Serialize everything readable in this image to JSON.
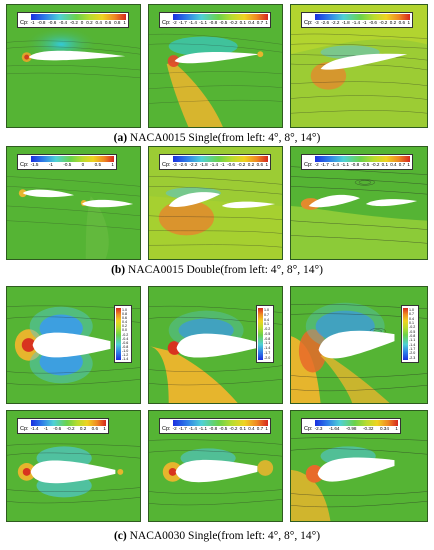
{
  "captions": [
    {
      "tag": "(a)",
      "text": "NACA0015 Single(from left: 4°, 8°, 14°)"
    },
    {
      "tag": "(b)",
      "text": "NACA0015 Double(from left: 4°, 8°, 14°)"
    },
    {
      "tag": "(c)",
      "text": "NACA0030 Single(from left: 4°, 8°, 14°)"
    }
  ],
  "colorbar_label": "Cp:",
  "colorbars": {
    "a1": [
      "-1",
      "-0.8",
      "-0.6",
      "-0.4",
      "-0.2",
      "0",
      "0.2",
      "0.4",
      "0.6",
      "0.8",
      "1"
    ],
    "a2": [
      "-2",
      "-1.7",
      "-1.4",
      "-1.1",
      "-0.8",
      "-0.5",
      "-0.2",
      "0.1",
      "0.4",
      "0.7",
      "1"
    ],
    "a3": [
      "-3",
      "-2.6",
      "-2.2",
      "-1.8",
      "-1.4",
      "-1",
      "-0.6",
      "-0.2",
      "0.2",
      "0.6",
      "1"
    ],
    "b1": [
      "-1.5",
      "-1",
      "-0.5",
      "0",
      "0.5",
      "1"
    ],
    "b2": [
      "-3",
      "-2.6",
      "-2.2",
      "-1.8",
      "-1.4",
      "-1",
      "-0.6",
      "-0.2",
      "0.2",
      "0.6",
      "1"
    ],
    "b3": [
      "-2",
      "-1.7",
      "-1.4",
      "-1.1",
      "-0.8",
      "-0.5",
      "-0.2",
      "0.1",
      "0.4",
      "0.7",
      "1"
    ],
    "c4": [
      "-1.4",
      "-1",
      "-0.6",
      "-0.2",
      "0.2",
      "0.6",
      "1"
    ],
    "c5": [
      "-2",
      "-1.7",
      "-1.4",
      "-1.1",
      "-0.8",
      "-0.5",
      "-0.2",
      "0.1",
      "0.4",
      "0.7",
      "1"
    ],
    "c6": [
      "-2.3",
      "-1.64",
      "-0.98",
      "-0.32",
      "0.34",
      "1"
    ]
  },
  "vbars": {
    "c1": [
      "1.0",
      "0.8",
      "0.6",
      "0.4",
      "0.2",
      "0.0",
      "-0.2",
      "-0.4",
      "-0.6",
      "-0.8",
      "-1.0",
      "-1.2",
      "-1.4"
    ],
    "c2": [
      "1.0",
      "0.7",
      "0.4",
      "0.1",
      "-0.2",
      "-0.5",
      "-0.8",
      "-1.1",
      "-1.4",
      "-1.7",
      "-2.0"
    ],
    "c3": [
      "1.0",
      "0.7",
      "0.4",
      "0.1",
      "-0.2",
      "-0.5",
      "-0.8",
      "-1.1",
      "-1.4",
      "-1.7",
      "-2.0",
      "-2.3"
    ]
  },
  "colors": {
    "background_field": "#55b434",
    "suction": "#2f7fe8",
    "stagnation": "#e3462a",
    "pressure": "#e6b52d"
  }
}
